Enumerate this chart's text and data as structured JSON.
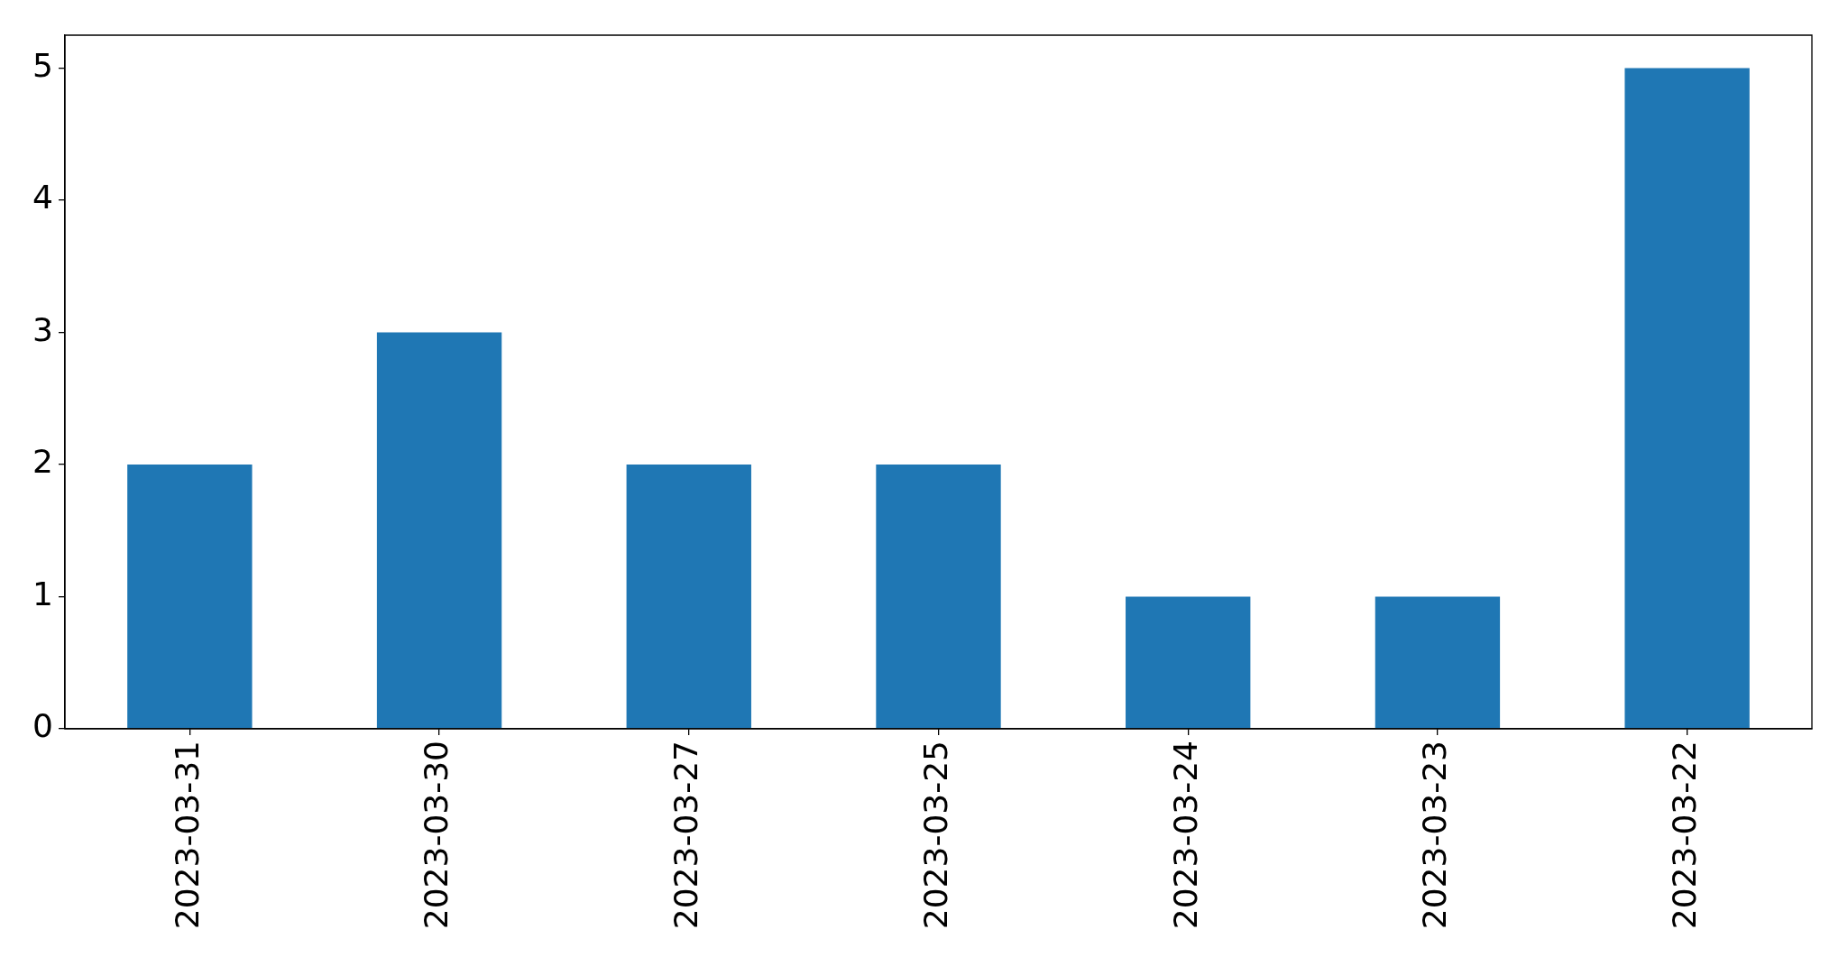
{
  "chart_data": {
    "type": "bar",
    "categories": [
      "2023-03-31",
      "2023-03-30",
      "2023-03-27",
      "2023-03-25",
      "2023-03-24",
      "2023-03-23",
      "2023-03-22"
    ],
    "values": [
      2,
      3,
      2,
      2,
      1,
      1,
      5
    ],
    "color": "#1f77b4",
    "ylim": [
      0,
      5.25
    ],
    "yticks": [
      0,
      1,
      2,
      3,
      4,
      5
    ],
    "grid": false,
    "legend": false
  }
}
